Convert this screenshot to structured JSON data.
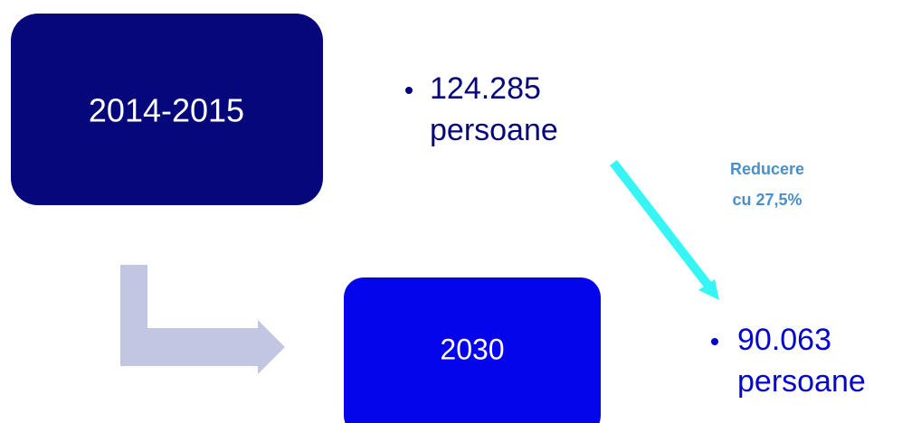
{
  "nodes": [
    {
      "label": "2014-2015"
    },
    {
      "label": "2030"
    }
  ],
  "bullets": [
    {
      "lines": [
        "124.285",
        "persoane"
      ]
    },
    {
      "lines": [
        "90.063",
        "persoane"
      ]
    }
  ],
  "annotation": {
    "lines": [
      "Reducere",
      "cu 27,5%"
    ]
  }
}
